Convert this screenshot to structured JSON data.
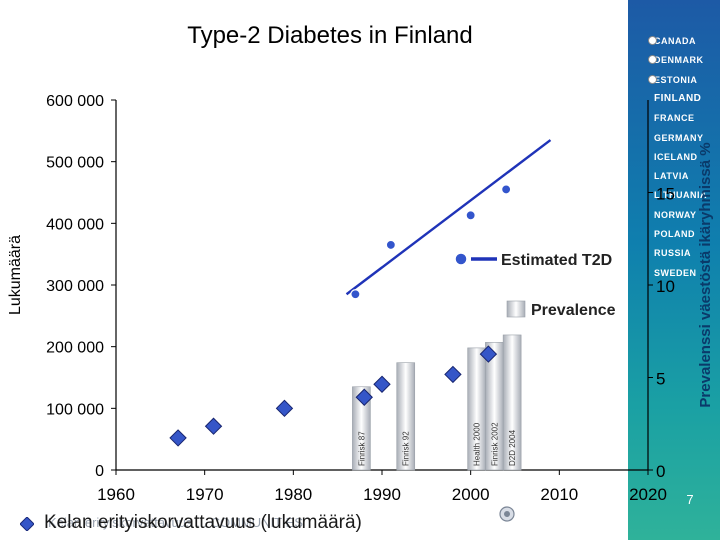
{
  "title": "Type-2 Diabetes in Finland",
  "slide_number": "7",
  "footer": {
    "label": "Kelan erityiskorvattavuus (lukumäärä)",
    "ghost_text": "Kelan erityiskorvattavuus ... COMMUNITIES"
  },
  "sidebar": {
    "countries": [
      "CANADA",
      "DENMARK",
      "ESTONIA",
      "FINLAND",
      "FRANCE",
      "GERMANY",
      "ICELAND",
      "LATVIA",
      "LITHUANIA",
      "NORWAY",
      "POLAND",
      "RUSSIA",
      "SWEDEN"
    ],
    "active": "FINLAND",
    "bulleted": [
      "CANADA",
      "DENMARK",
      "ESTONIA"
    ]
  },
  "colors": {
    "line": "#1f33b8",
    "diamond": "#3556c8",
    "circle": "#3355cc",
    "bar_light": "#ffffff",
    "bar_mid": "#b8bdc6",
    "axis": "#000000"
  },
  "chart_data": {
    "type": "line",
    "title": "Type-2 Diabetes in Finland",
    "ylabel": "Lukumäärä",
    "ylabel_right": "Prevalenssi väestöstä ikäryhmissä %",
    "xlim": [
      1960,
      2020
    ],
    "ylim": [
      0,
      600000
    ],
    "ylim_right": [
      0,
      20
    ],
    "x_ticks": [
      1960,
      1970,
      1980,
      1990,
      2000,
      2010,
      2020
    ],
    "x_tick_labels": [
      "1960",
      "1970",
      "1980",
      "1990",
      "2000",
      "2010",
      "2020"
    ],
    "y_ticks": [
      0,
      100000,
      200000,
      300000,
      400000,
      500000,
      600000
    ],
    "y_tick_labels": [
      "0",
      "100 000",
      "200 000",
      "300 000",
      "400 000",
      "500 000",
      "600 000"
    ],
    "y_right_ticks": [
      0,
      5,
      10,
      15
    ],
    "y_right_tick_labels": [
      "0",
      "5",
      "10",
      "15"
    ],
    "series": [
      {
        "name": "Kelan erityiskorvattavuus (lukumäärä)",
        "marker": "diamond",
        "x": [
          1967,
          1971,
          1979,
          1988,
          1990,
          1998,
          2002
        ],
        "y": [
          52000,
          71000,
          100000,
          118000,
          139000,
          155000,
          188000
        ]
      },
      {
        "name": "Estimated T2D",
        "marker": "circle",
        "x": [
          1987,
          1991,
          2000,
          2004
        ],
        "y": [
          285000,
          365000,
          413000,
          455000
        ]
      },
      {
        "name": "Estimated T2D trend",
        "marker": "line",
        "x": [
          1986,
          2009
        ],
        "y": [
          285000,
          535000
        ]
      },
      {
        "name": "Prevalence",
        "marker": "bar",
        "axis": "right",
        "bars": [
          {
            "x": 1987,
            "value": 4.5,
            "label": "Finrisk 87"
          },
          {
            "x": 1992,
            "value": 5.8,
            "label": "Finrisk 92"
          },
          {
            "x": 2000,
            "value": 6.6,
            "label": "Health 2000"
          },
          {
            "x": 2002,
            "value": 6.9,
            "label": "Finrisk 2002"
          },
          {
            "x": 2004,
            "value": 7.3,
            "label": "D2D 2004"
          }
        ]
      }
    ],
    "legend": [
      {
        "label": "Estimated T2D",
        "kind": "circle-line"
      },
      {
        "label": "Prevalence",
        "kind": "bar"
      }
    ],
    "legend_position": "right"
  }
}
